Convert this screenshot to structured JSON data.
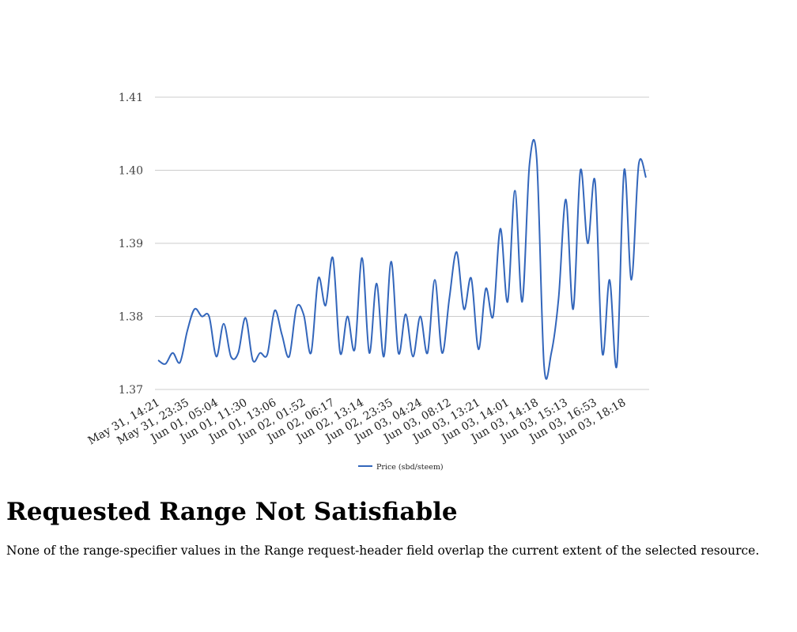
{
  "chart_data": {
    "type": "line",
    "categories": [
      "May 31, 14:21",
      null,
      null,
      null,
      "May 31, 23:35",
      null,
      null,
      null,
      "Jun 01, 05:04",
      null,
      null,
      null,
      "Jun 01, 11:30",
      null,
      null,
      null,
      "Jun 01, 13:06",
      null,
      null,
      null,
      "Jun 02, 01:52",
      null,
      null,
      null,
      "Jun 02, 06:17",
      null,
      null,
      null,
      "Jun 02, 13:14",
      null,
      null,
      null,
      "Jun 02, 23:35",
      null,
      null,
      null,
      "Jun 03, 04:24",
      null,
      null,
      null,
      "Jun 03, 08:12",
      null,
      null,
      null,
      "Jun 03, 13:21",
      null,
      null,
      null,
      "Jun 03, 14:01",
      null,
      null,
      null,
      "Jun 03, 14:18",
      null,
      null,
      null,
      "Jun 03, 15:13",
      null,
      null,
      null,
      "Jun 03, 16:53",
      null,
      null,
      null,
      "Jun 03, 18:18",
      null,
      null,
      null
    ],
    "series": [
      {
        "name": "Price (sbd/steem)",
        "color": "#3366bb",
        "values": [
          1.374,
          1.3735,
          1.375,
          1.3737,
          1.378,
          1.381,
          1.38,
          1.38,
          1.3745,
          1.379,
          1.3745,
          1.375,
          1.3798,
          1.374,
          1.375,
          1.3748,
          1.3808,
          1.3775,
          1.3745,
          1.3812,
          1.3802,
          1.375,
          1.3852,
          1.3815,
          1.388,
          1.375,
          1.38,
          1.3755,
          1.388,
          1.375,
          1.3845,
          1.3745,
          1.3875,
          1.375,
          1.3803,
          1.3745,
          1.38,
          1.375,
          1.385,
          1.375,
          1.3825,
          1.3888,
          1.381,
          1.3852,
          1.3755,
          1.3838,
          1.38,
          1.392,
          1.382,
          1.3972,
          1.382,
          1.4008,
          1.4015,
          1.3733,
          1.375,
          1.3825,
          1.396,
          1.381,
          1.4,
          1.39,
          1.3985,
          1.375,
          1.385,
          1.3733,
          1.4,
          1.385,
          1.4008,
          1.399
        ]
      }
    ],
    "ylim": [
      1.37,
      1.41
    ],
    "yticks": [
      1.37,
      1.38,
      1.39,
      {
        "value": 1.4,
        "label": "1.40"
      },
      1.41
    ],
    "grid": true,
    "legend": "bottom"
  },
  "page": {
    "heading": "Requested Range Not Satisfiable",
    "message": "None of the range-specifier values in the Range request-header field overlap the current extent of the selected resource."
  }
}
